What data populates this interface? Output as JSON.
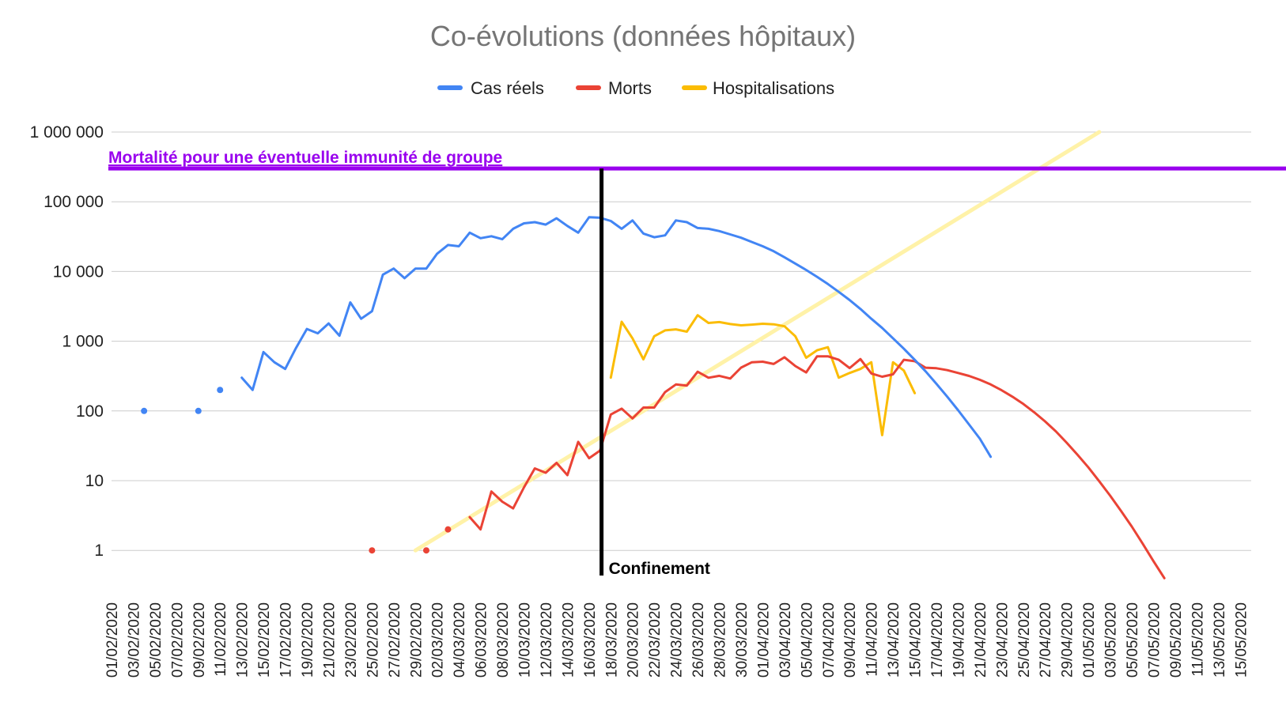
{
  "chart_data": {
    "type": "line",
    "title": "Co-évolutions (données hôpitaux)",
    "xlabel": "",
    "ylabel": "",
    "y_scale": "log",
    "ylim": [
      0.3,
      1000000
    ],
    "grid": true,
    "legend_position": "top",
    "colors": {
      "Cas réels": "#4285f4",
      "Morts": "#ea4335",
      "Hospitalisations": "#fbbc04",
      "threshold": "#9900ee",
      "trend": "#fff2a8",
      "confinement": "#000000",
      "grid": "#cccccc"
    },
    "y_ticks": [
      {
        "value": 1,
        "label": "1"
      },
      {
        "value": 10,
        "label": "10"
      },
      {
        "value": 100,
        "label": "100"
      },
      {
        "value": 1000,
        "label": "1 000"
      },
      {
        "value": 10000,
        "label": "10 000"
      },
      {
        "value": 100000,
        "label": "100 000"
      },
      {
        "value": 1000000,
        "label": "1 000 000"
      }
    ],
    "x_range": [
      "2020-02-01",
      "2020-05-16"
    ],
    "x_ticks": [
      "01/02/2020",
      "03/02/2020",
      "05/02/2020",
      "07/02/2020",
      "09/02/2020",
      "11/02/2020",
      "13/02/2020",
      "15/02/2020",
      "17/02/2020",
      "19/02/2020",
      "21/02/2020",
      "23/02/2020",
      "25/02/2020",
      "27/02/2020",
      "29/02/2020",
      "02/03/2020",
      "04/03/2020",
      "06/03/2020",
      "08/03/2020",
      "10/03/2020",
      "12/03/2020",
      "14/03/2020",
      "16/03/2020",
      "18/03/2020",
      "20/03/2020",
      "22/03/2020",
      "24/03/2020",
      "26/03/2020",
      "28/03/2020",
      "30/03/2020",
      "01/04/2020",
      "03/04/2020",
      "05/04/2020",
      "07/04/2020",
      "09/04/2020",
      "11/04/2020",
      "13/04/2020",
      "15/04/2020",
      "17/04/2020",
      "19/04/2020",
      "21/04/2020",
      "23/04/2020",
      "25/04/2020",
      "27/04/2020",
      "29/04/2020",
      "01/05/2020",
      "03/05/2020",
      "05/05/2020",
      "07/05/2020",
      "09/05/2020",
      "11/05/2020",
      "13/05/2020",
      "15/05/2020"
    ],
    "series": [
      {
        "name": "Cas réels",
        "points": [
          [
            "2020-02-04",
            100
          ],
          [
            "2020-02-09",
            100
          ],
          [
            "2020-02-11",
            200
          ],
          [
            "2020-02-13",
            300
          ],
          [
            "2020-02-14",
            200
          ],
          [
            "2020-02-15",
            700
          ],
          [
            "2020-02-16",
            500
          ],
          [
            "2020-02-17",
            400
          ],
          [
            "2020-02-18",
            800
          ],
          [
            "2020-02-19",
            1500
          ],
          [
            "2020-02-20",
            1300
          ],
          [
            "2020-02-21",
            1800
          ],
          [
            "2020-02-22",
            1200
          ],
          [
            "2020-02-23",
            3600
          ],
          [
            "2020-02-24",
            2100
          ],
          [
            "2020-02-25",
            2700
          ],
          [
            "2020-02-26",
            9000
          ],
          [
            "2020-02-27",
            11000
          ],
          [
            "2020-02-28",
            8000
          ],
          [
            "2020-02-29",
            11000
          ],
          [
            "2020-03-01",
            11000
          ],
          [
            "2020-03-02",
            18000
          ],
          [
            "2020-03-03",
            24000
          ],
          [
            "2020-03-04",
            23000
          ],
          [
            "2020-03-05",
            36000
          ],
          [
            "2020-03-06",
            30000
          ],
          [
            "2020-03-07",
            32000
          ],
          [
            "2020-03-08",
            29000
          ],
          [
            "2020-03-09",
            41000
          ],
          [
            "2020-03-10",
            49000
          ],
          [
            "2020-03-11",
            51000
          ],
          [
            "2020-03-12",
            47000
          ],
          [
            "2020-03-13",
            58000
          ],
          [
            "2020-03-14",
            45000
          ],
          [
            "2020-03-15",
            36000
          ],
          [
            "2020-03-16",
            60000
          ],
          [
            "2020-03-17",
            59000
          ],
          [
            "2020-03-18",
            53000
          ],
          [
            "2020-03-19",
            41000
          ],
          [
            "2020-03-20",
            54000
          ],
          [
            "2020-03-21",
            35000
          ],
          [
            "2020-03-22",
            31000
          ],
          [
            "2020-03-23",
            33000
          ],
          [
            "2020-03-24",
            54000
          ],
          [
            "2020-03-25",
            51000
          ],
          [
            "2020-03-26",
            42000
          ],
          [
            "2020-03-27",
            41000
          ],
          [
            "2020-03-28",
            38000
          ],
          [
            "2020-03-29",
            34000
          ],
          [
            "2020-03-30",
            30500
          ],
          [
            "2020-03-31",
            26500
          ],
          [
            "2020-04-01",
            23000
          ],
          [
            "2020-04-02",
            19500
          ],
          [
            "2020-04-03",
            16000
          ],
          [
            "2020-04-04",
            13000
          ],
          [
            "2020-04-05",
            10500
          ],
          [
            "2020-04-06",
            8400
          ],
          [
            "2020-04-07",
            6600
          ],
          [
            "2020-04-08",
            5100
          ],
          [
            "2020-04-09",
            3900
          ],
          [
            "2020-04-10",
            2900
          ],
          [
            "2020-04-11",
            2100
          ],
          [
            "2020-04-12",
            1550
          ],
          [
            "2020-04-13",
            1100
          ],
          [
            "2020-04-14",
            780
          ],
          [
            "2020-04-15",
            540
          ],
          [
            "2020-04-16",
            370
          ],
          [
            "2020-04-17",
            245
          ],
          [
            "2020-04-18",
            160
          ],
          [
            "2020-04-19",
            102
          ],
          [
            "2020-04-20",
            64
          ],
          [
            "2020-04-21",
            40
          ],
          [
            "2020-04-22",
            22
          ]
        ],
        "isolated": [
          [
            "2020-02-04",
            100
          ],
          [
            "2020-02-09",
            100
          ],
          [
            "2020-02-11",
            200
          ]
        ]
      },
      {
        "name": "Morts",
        "points": [
          [
            "2020-03-05",
            3
          ],
          [
            "2020-03-06",
            2
          ],
          [
            "2020-03-07",
            7
          ],
          [
            "2020-03-08",
            5
          ],
          [
            "2020-03-09",
            4
          ],
          [
            "2020-03-10",
            8
          ],
          [
            "2020-03-11",
            15
          ],
          [
            "2020-03-12",
            13
          ],
          [
            "2020-03-13",
            18
          ],
          [
            "2020-03-14",
            12
          ],
          [
            "2020-03-15",
            36
          ],
          [
            "2020-03-16",
            21
          ],
          [
            "2020-03-17",
            27
          ],
          [
            "2020-03-18",
            89
          ],
          [
            "2020-03-19",
            108
          ],
          [
            "2020-03-20",
            78
          ],
          [
            "2020-03-21",
            112
          ],
          [
            "2020-03-22",
            112
          ],
          [
            "2020-03-23",
            186
          ],
          [
            "2020-03-24",
            240
          ],
          [
            "2020-03-25",
            231
          ],
          [
            "2020-03-26",
            365
          ],
          [
            "2020-03-27",
            299
          ],
          [
            "2020-03-28",
            319
          ],
          [
            "2020-03-29",
            292
          ],
          [
            "2020-03-30",
            418
          ],
          [
            "2020-03-31",
            499
          ],
          [
            "2020-04-01",
            509
          ],
          [
            "2020-04-02",
            471
          ],
          [
            "2020-04-03",
            588
          ],
          [
            "2020-04-04",
            441
          ],
          [
            "2020-04-05",
            357
          ],
          [
            "2020-04-06",
            605
          ],
          [
            "2020-04-07",
            607
          ],
          [
            "2020-04-08",
            541
          ],
          [
            "2020-04-09",
            412
          ],
          [
            "2020-04-10",
            554
          ],
          [
            "2020-04-11",
            345
          ],
          [
            "2020-04-12",
            310
          ],
          [
            "2020-04-13",
            335
          ],
          [
            "2020-04-14",
            541
          ],
          [
            "2020-04-15",
            517
          ],
          [
            "2020-04-16",
            417
          ],
          [
            "2020-04-17",
            410
          ],
          [
            "2020-04-18",
            385
          ],
          [
            "2020-04-19",
            350
          ],
          [
            "2020-04-20",
            318
          ],
          [
            "2020-04-21",
            280
          ],
          [
            "2020-04-22",
            240
          ],
          [
            "2020-04-23",
            198
          ],
          [
            "2020-04-24",
            160
          ],
          [
            "2020-04-25",
            126
          ],
          [
            "2020-04-26",
            96
          ],
          [
            "2020-04-27",
            71
          ],
          [
            "2020-04-28",
            51
          ],
          [
            "2020-04-29",
            35
          ],
          [
            "2020-04-30",
            23.5
          ],
          [
            "2020-05-01",
            15.5
          ],
          [
            "2020-05-02",
            9.8
          ],
          [
            "2020-05-03",
            6.1
          ],
          [
            "2020-05-04",
            3.7
          ],
          [
            "2020-05-05",
            2.2
          ],
          [
            "2020-05-06",
            1.25
          ],
          [
            "2020-05-07",
            0.7
          ],
          [
            "2020-05-08",
            0.4
          ]
        ],
        "isolated": [
          [
            "2020-02-25",
            1
          ],
          [
            "2020-03-01",
            1
          ],
          [
            "2020-03-03",
            2
          ]
        ]
      },
      {
        "name": "Hospitalisations",
        "points": [
          [
            "2020-03-18",
            300
          ],
          [
            "2020-03-19",
            1900
          ],
          [
            "2020-03-20",
            1100
          ],
          [
            "2020-03-21",
            550
          ],
          [
            "2020-03-22",
            1180
          ],
          [
            "2020-03-23",
            1430
          ],
          [
            "2020-03-24",
            1480
          ],
          [
            "2020-03-25",
            1370
          ],
          [
            "2020-03-26",
            2360
          ],
          [
            "2020-03-27",
            1830
          ],
          [
            "2020-03-28",
            1880
          ],
          [
            "2020-03-29",
            1760
          ],
          [
            "2020-03-30",
            1690
          ],
          [
            "2020-03-31",
            1730
          ],
          [
            "2020-04-01",
            1780
          ],
          [
            "2020-04-02",
            1750
          ],
          [
            "2020-04-03",
            1640
          ],
          [
            "2020-04-04",
            1180
          ],
          [
            "2020-04-05",
            580
          ],
          [
            "2020-04-06",
            740
          ],
          [
            "2020-04-07",
            820
          ],
          [
            "2020-04-08",
            300
          ],
          [
            "2020-04-09",
            350
          ],
          [
            "2020-04-10",
            400
          ],
          [
            "2020-04-11",
            500
          ],
          [
            "2020-04-12",
            45
          ],
          [
            "2020-04-13",
            500
          ],
          [
            "2020-04-14",
            380
          ],
          [
            "2020-04-15",
            180
          ]
        ]
      }
    ],
    "trend_line": {
      "start": [
        "2020-02-29",
        1
      ],
      "end": [
        "2020-05-02",
        1000000
      ]
    },
    "threshold": {
      "value": 300000,
      "label": "Mortalité pour une éventuelle immunité de groupe"
    },
    "event": {
      "date": "2020-03-17",
      "label": "Confinement"
    }
  }
}
